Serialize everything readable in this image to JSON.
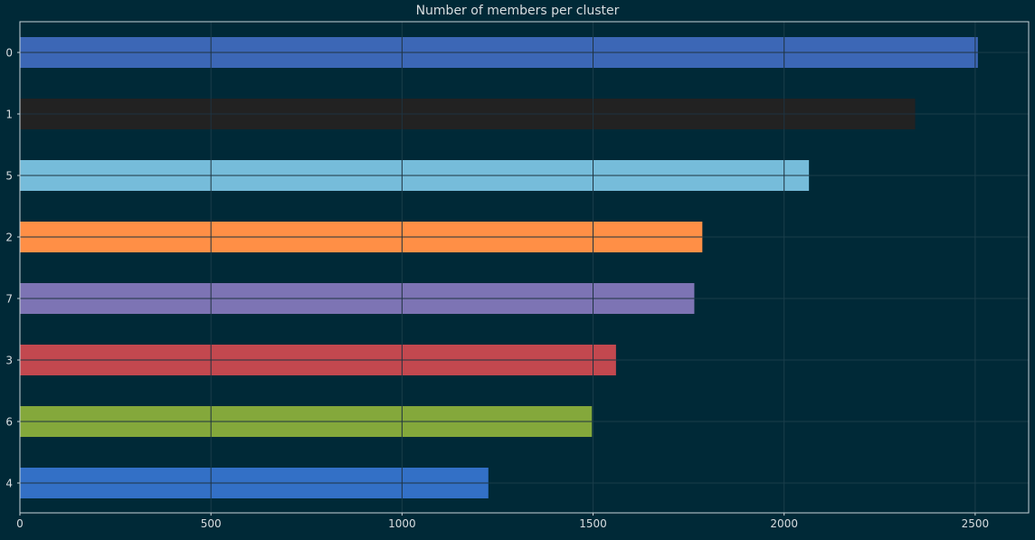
{
  "chart_data": {
    "type": "bar",
    "orientation": "horizontal",
    "title": "Number of members per cluster",
    "xlabel": "",
    "ylabel": "",
    "categories": [
      "0",
      "1",
      "5",
      "2",
      "7",
      "3",
      "6",
      "4"
    ],
    "values": [
      2507,
      2343,
      2065,
      1786,
      1765,
      1560,
      1497,
      1226
    ],
    "xlim": [
      0,
      2640
    ],
    "xticks": [
      "0",
      "500",
      "1000",
      "1500",
      "2000",
      "2500"
    ],
    "grid": true,
    "legend": "none",
    "colors": [
      "#3c67b6",
      "#222222",
      "#76bcda",
      "#ff8f46",
      "#7d74b4",
      "#c3484f",
      "#84a83b",
      "#3370c6"
    ],
    "background": "#002937",
    "grid_color": "#1a3d4a",
    "text_color": "#d8dde0"
  }
}
